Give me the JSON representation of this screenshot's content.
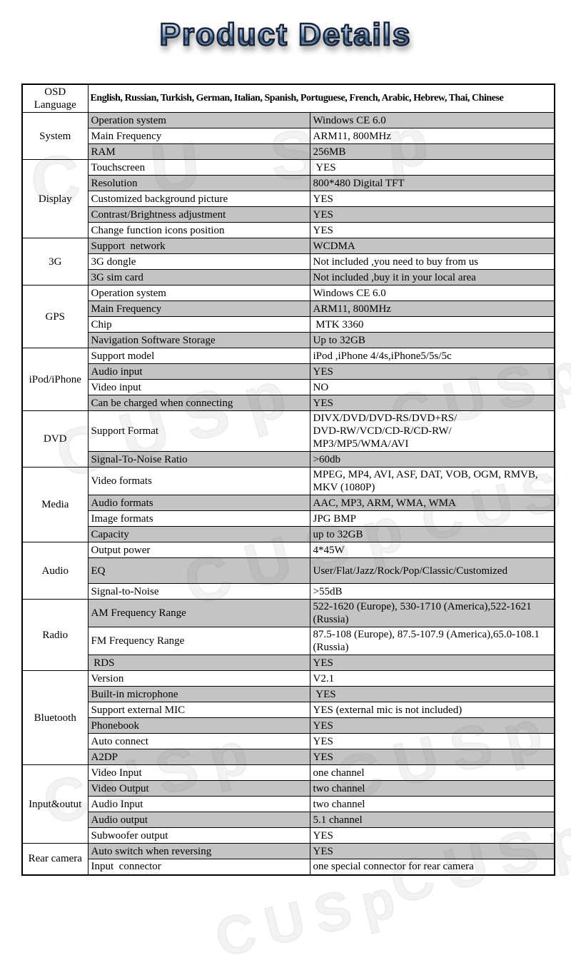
{
  "page_title": "Product Details",
  "watermark": {
    "text": "CUSp"
  },
  "colors": {
    "row_shade": "#c4c4c4",
    "row_plain": "#ffffff",
    "table_border": "#000000",
    "title_fill_light": "#c3d6e7",
    "title_fill_dark": "#33506f",
    "title_outline": "#19233a"
  },
  "table": {
    "osd_row": {
      "label": "OSD Language",
      "value": "English, Russian, Turkish, German, Italian, Spanish, Portuguese, French, Arabic, Hebrew, Thai, Chinese"
    },
    "sections": [
      {
        "category": "System",
        "rows": [
          {
            "label": "Operation system",
            "value": "Windows CE 6.0"
          },
          {
            "label": "Main Frequency",
            "value": "ARM11, 800MHz"
          },
          {
            "label": "RAM",
            "value": "256MB"
          }
        ]
      },
      {
        "category": "Display",
        "rows": [
          {
            "label": "Touchscreen",
            "value": " YES"
          },
          {
            "label": "Resolution",
            "value": "800*480 Digital TFT"
          },
          {
            "label": "Customized background picture",
            "value": "YES"
          },
          {
            "label": "Contrast/Brightness adjustment",
            "value": "YES"
          },
          {
            "label": "Change function icons position",
            "value": "YES"
          }
        ]
      },
      {
        "category": "3G",
        "rows": [
          {
            "label": "Support  network",
            "value": "WCDMA"
          },
          {
            "label": "3G dongle",
            "value": "Not included ,you need to buy from us"
          },
          {
            "label": "3G sim card",
            "value": "Not included ,buy it in your local area"
          }
        ]
      },
      {
        "category": "GPS",
        "rows": [
          {
            "label": "Operation system",
            "value": "Windows CE 6.0"
          },
          {
            "label": "Main Frequency",
            "value": "ARM11, 800MHz"
          },
          {
            "label": "Chip",
            "value": " MTK 3360"
          },
          {
            "label": "Navigation Software Storage",
            "value": "Up to 32GB"
          }
        ]
      },
      {
        "category": "iPod/iPhone",
        "rows": [
          {
            "label": "Support model",
            "value": "iPod ,iPhone 4/4s,iPhone5/5s/5c"
          },
          {
            "label": "Audio input",
            "value": "YES"
          },
          {
            "label": "Video input",
            "value": "NO"
          },
          {
            "label": "Can be charged when connecting",
            "value": "YES"
          }
        ]
      },
      {
        "category": "DVD",
        "rows": [
          {
            "label": "Support Format",
            "value": "DIVX/DVD/DVD-RS/DVD+RS/\nDVD-RW/VCD/CD-R/CD-RW/\nMP3/MP5/WMA/AVI"
          },
          {
            "label": "Signal-To-Noise Ratio",
            "value": ">60db"
          }
        ]
      },
      {
        "category": "Media",
        "rows": [
          {
            "label": "Video formats",
            "value": "MPEG, MP4, AVI, ASF, DAT, VOB, OGM, RMVB, MKV (1080P)"
          },
          {
            "label": "Audio formats",
            "value": "AAC, MP3, ARM, WMA, WMA"
          },
          {
            "label": "Image formats",
            "value": "JPG BMP"
          },
          {
            "label": "Capacity",
            "value": "up to 32GB"
          }
        ]
      },
      {
        "category": "Audio",
        "rows": [
          {
            "label": "Output power",
            "value": "4*45W"
          },
          {
            "label": "EQ",
            "value": "User/Flat/Jazz/Rock/Pop/Classic/Customized",
            "tall": true
          },
          {
            "label": "Signal-to-Noise",
            "value": ">55dB"
          }
        ]
      },
      {
        "category": "Radio",
        "rows": [
          {
            "label": "AM Frequency Range",
            "value": "522-1620 (Europe), 530-1710 (America),522-1621\n(Russia)"
          },
          {
            "label": "FM Frequency Range",
            "value": "87.5-108 (Europe), 87.5-107.9 (America),65.0-108.1\n(Russia)"
          },
          {
            "label": " RDS",
            "value": "YES"
          }
        ]
      },
      {
        "category": "Bluetooth",
        "rows": [
          {
            "label": "Version",
            "value": "V2.1"
          },
          {
            "label": "Built-in microphone",
            "value": " YES"
          },
          {
            "label": "Support external MIC",
            "value": "YES (external mic is not included)"
          },
          {
            "label": "Phonebook",
            "value": "YES"
          },
          {
            "label": "Auto connect",
            "value": "YES"
          },
          {
            "label": "A2DP",
            "value": "YES"
          }
        ]
      },
      {
        "category": "Input&outut",
        "rows": [
          {
            "label": "Video Input",
            "value": "one channel"
          },
          {
            "label": "Video Output",
            "value": "two channel"
          },
          {
            "label": "Audio Input",
            "value": "two channel"
          },
          {
            "label": "Audio output",
            "value": "5.1 channel"
          },
          {
            "label": "Subwoofer output",
            "value": "YES"
          }
        ]
      },
      {
        "category": "Rear camera",
        "rows": [
          {
            "label": "Auto switch when reversing",
            "value": "YES"
          },
          {
            "label": "Input  connector",
            "value": "one special connector for rear camera"
          }
        ]
      }
    ]
  }
}
